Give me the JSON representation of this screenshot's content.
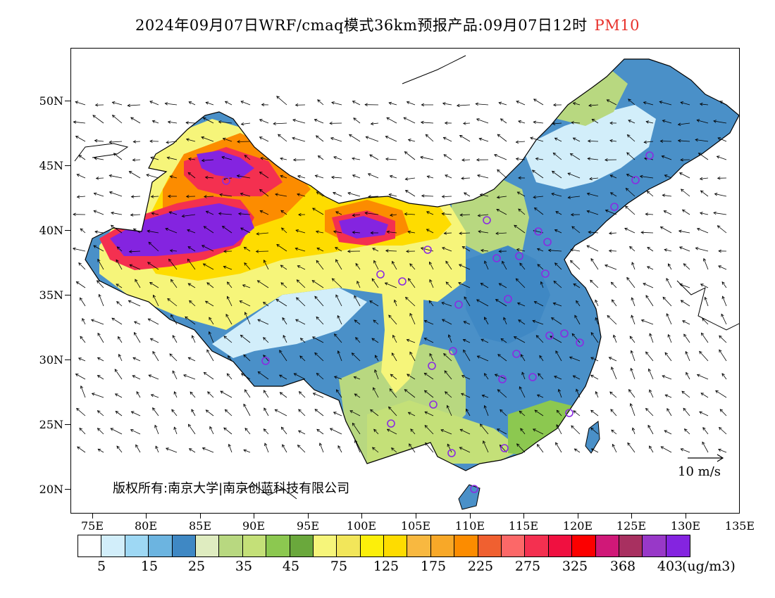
{
  "title": {
    "text": "2024年09月07日WRF/cmaq模式36km预报产品:09月07日12时",
    "pollutant": "PM10",
    "pollutant_color": "#e8322c"
  },
  "map": {
    "lat_labels": [
      "50N",
      "45N",
      "40N",
      "35N",
      "30N",
      "25N",
      "20N"
    ],
    "lon_labels": [
      "75E",
      "80E",
      "85E",
      "90E",
      "95E",
      "100E",
      "105E",
      "110E",
      "115E",
      "120E",
      "125E",
      "130E",
      "135E"
    ],
    "copyright": "版权所有:南京大学|南京创蓝科技有限公司",
    "wind_reference": "10 m/s",
    "colors": {
      "land_background": "#4a90c8",
      "station_marker": "#8a2be2"
    }
  },
  "legend": {
    "colors": [
      "#ffffff",
      "#d2eefa",
      "#9ed8f4",
      "#6cb4e0",
      "#3f88c4",
      "#dfecc0",
      "#b8d880",
      "#c4e078",
      "#8cc850",
      "#6aa83c",
      "#f6f57a",
      "#f2e65a",
      "#fcef0a",
      "#fedc00",
      "#f8b840",
      "#f8a828",
      "#fc8c00",
      "#f06030",
      "#fc6868",
      "#f43050",
      "#f01040",
      "#fc0000",
      "#d01878",
      "#a83060",
      "#9838c8",
      "#8424e0"
    ],
    "labels": [
      "5",
      "15",
      "25",
      "35",
      "45",
      "75",
      "125",
      "175",
      "225",
      "275",
      "325",
      "368",
      "403"
    ],
    "unit": "(ug/m3)"
  }
}
